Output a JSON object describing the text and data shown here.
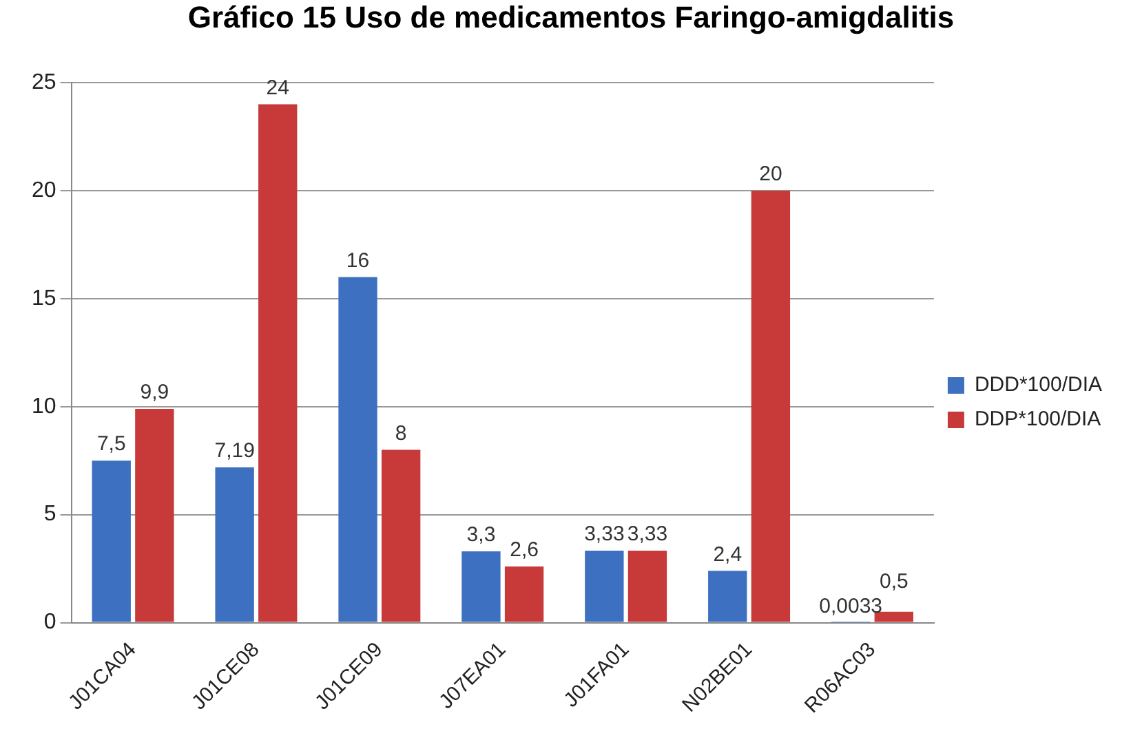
{
  "chart_data": {
    "type": "bar",
    "title": "Gráfico 15 Uso de medicamentos Faringo-amigdalitis",
    "categories": [
      "J01CA04",
      "J01CE08",
      "J01CE09",
      "J07EA01",
      "J01FA01",
      "N02BE01",
      "R06AC03"
    ],
    "series": [
      {
        "name": "DDD*100/DIA",
        "color": "#3d70c0",
        "values": [
          7.5,
          7.19,
          16,
          3.3,
          3.33,
          2.4,
          0.0033
        ],
        "value_labels": [
          "7,5",
          "7,19",
          "16",
          "3,3",
          "3,33",
          "2,4",
          "0,0033"
        ]
      },
      {
        "name": "DDP*100/DIA",
        "color": "#c8393a",
        "values": [
          9.9,
          24,
          8,
          2.6,
          3.33,
          20,
          0.5
        ],
        "value_labels": [
          "9,9",
          "24",
          "8",
          "2,6",
          "3,33",
          "20",
          "0,5"
        ]
      }
    ],
    "ylim": [
      0,
      25
    ],
    "yticks": [
      0,
      5,
      10,
      15,
      20,
      25
    ],
    "grid": "y",
    "legend": "right"
  }
}
